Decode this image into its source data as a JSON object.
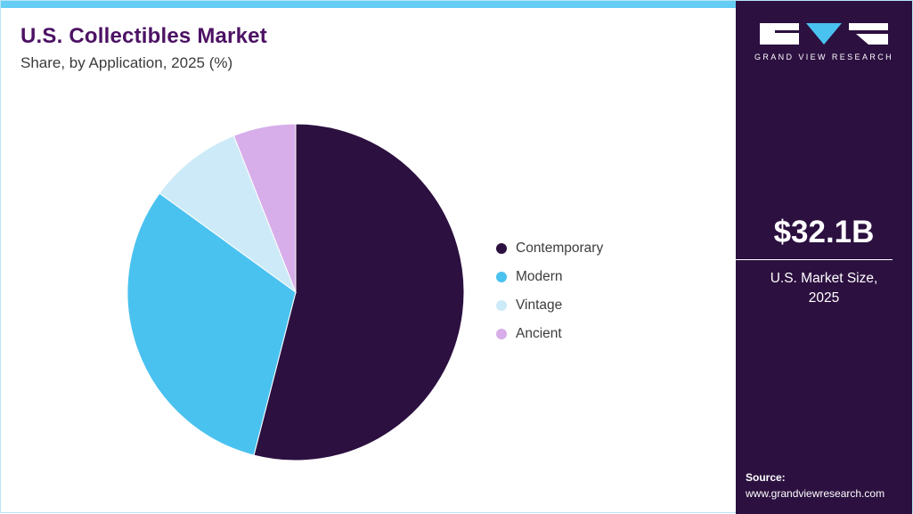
{
  "header": {
    "title": "U.S. Collectibles Market",
    "subtitle": "Share, by Application, 2025 (%)"
  },
  "sidebar": {
    "brand_name": "GRAND VIEW RESEARCH",
    "market_size_value": "$32.1B",
    "market_size_label_line1": "U.S. Market Size,",
    "market_size_label_line2": "2025",
    "source_label": "Source:",
    "source_url": "www.grandviewresearch.com"
  },
  "colors": {
    "sidebar_bg": "#2c1040",
    "accent_cyan": "#65cdf3",
    "title_purple": "#4c1164"
  },
  "chart_data": {
    "type": "pie",
    "title": "U.S. Collectibles Market Share, by Application, 2025 (%)",
    "labels": [
      "Contemporary",
      "Modern",
      "Vintage",
      "Ancient"
    ],
    "values": [
      54,
      31,
      9,
      6
    ],
    "unit": "%",
    "colors": [
      "#2c1040",
      "#4ac2f0",
      "#cdeaf8",
      "#d7aee9"
    ],
    "start_angle_deg": 0,
    "direction": "clockwise",
    "legend_position": "right",
    "data_labels_shown": false
  }
}
